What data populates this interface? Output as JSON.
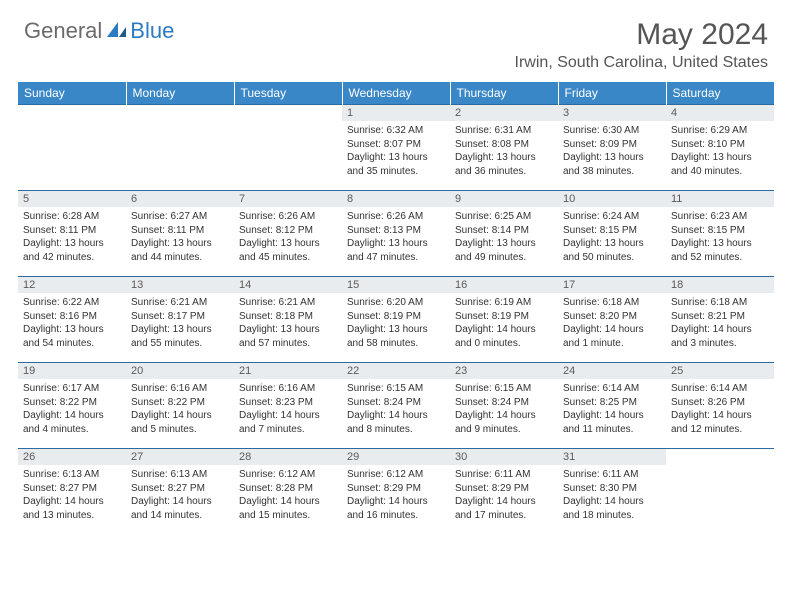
{
  "logo": {
    "part1": "General",
    "part2": "Blue"
  },
  "title": "May 2024",
  "location": "Irwin, South Carolina, United States",
  "colors": {
    "header_bg": "#3a87c8",
    "header_text": "#ffffff",
    "daynum_bg": "#e9ecef",
    "border": "#2d6aa0",
    "title_color": "#555555",
    "logo_gray": "#6b6b6b",
    "logo_blue": "#2d7bc0"
  },
  "fonts": {
    "title_size": 30,
    "location_size": 16,
    "weekday_size": 12,
    "daynum_size": 11,
    "body_size": 10
  },
  "weekdays": [
    "Sunday",
    "Monday",
    "Tuesday",
    "Wednesday",
    "Thursday",
    "Friday",
    "Saturday"
  ],
  "weeks": [
    [
      {
        "empty": true
      },
      {
        "empty": true
      },
      {
        "empty": true
      },
      {
        "day": "1",
        "sunrise": "6:32 AM",
        "sunset": "8:07 PM",
        "daylight": "13 hours and 35 minutes."
      },
      {
        "day": "2",
        "sunrise": "6:31 AM",
        "sunset": "8:08 PM",
        "daylight": "13 hours and 36 minutes."
      },
      {
        "day": "3",
        "sunrise": "6:30 AM",
        "sunset": "8:09 PM",
        "daylight": "13 hours and 38 minutes."
      },
      {
        "day": "4",
        "sunrise": "6:29 AM",
        "sunset": "8:10 PM",
        "daylight": "13 hours and 40 minutes."
      }
    ],
    [
      {
        "day": "5",
        "sunrise": "6:28 AM",
        "sunset": "8:11 PM",
        "daylight": "13 hours and 42 minutes."
      },
      {
        "day": "6",
        "sunrise": "6:27 AM",
        "sunset": "8:11 PM",
        "daylight": "13 hours and 44 minutes."
      },
      {
        "day": "7",
        "sunrise": "6:26 AM",
        "sunset": "8:12 PM",
        "daylight": "13 hours and 45 minutes."
      },
      {
        "day": "8",
        "sunrise": "6:26 AM",
        "sunset": "8:13 PM",
        "daylight": "13 hours and 47 minutes."
      },
      {
        "day": "9",
        "sunrise": "6:25 AM",
        "sunset": "8:14 PM",
        "daylight": "13 hours and 49 minutes."
      },
      {
        "day": "10",
        "sunrise": "6:24 AM",
        "sunset": "8:15 PM",
        "daylight": "13 hours and 50 minutes."
      },
      {
        "day": "11",
        "sunrise": "6:23 AM",
        "sunset": "8:15 PM",
        "daylight": "13 hours and 52 minutes."
      }
    ],
    [
      {
        "day": "12",
        "sunrise": "6:22 AM",
        "sunset": "8:16 PM",
        "daylight": "13 hours and 54 minutes."
      },
      {
        "day": "13",
        "sunrise": "6:21 AM",
        "sunset": "8:17 PM",
        "daylight": "13 hours and 55 minutes."
      },
      {
        "day": "14",
        "sunrise": "6:21 AM",
        "sunset": "8:18 PM",
        "daylight": "13 hours and 57 minutes."
      },
      {
        "day": "15",
        "sunrise": "6:20 AM",
        "sunset": "8:19 PM",
        "daylight": "13 hours and 58 minutes."
      },
      {
        "day": "16",
        "sunrise": "6:19 AM",
        "sunset": "8:19 PM",
        "daylight": "14 hours and 0 minutes."
      },
      {
        "day": "17",
        "sunrise": "6:18 AM",
        "sunset": "8:20 PM",
        "daylight": "14 hours and 1 minute."
      },
      {
        "day": "18",
        "sunrise": "6:18 AM",
        "sunset": "8:21 PM",
        "daylight": "14 hours and 3 minutes."
      }
    ],
    [
      {
        "day": "19",
        "sunrise": "6:17 AM",
        "sunset": "8:22 PM",
        "daylight": "14 hours and 4 minutes."
      },
      {
        "day": "20",
        "sunrise": "6:16 AM",
        "sunset": "8:22 PM",
        "daylight": "14 hours and 5 minutes."
      },
      {
        "day": "21",
        "sunrise": "6:16 AM",
        "sunset": "8:23 PM",
        "daylight": "14 hours and 7 minutes."
      },
      {
        "day": "22",
        "sunrise": "6:15 AM",
        "sunset": "8:24 PM",
        "daylight": "14 hours and 8 minutes."
      },
      {
        "day": "23",
        "sunrise": "6:15 AM",
        "sunset": "8:24 PM",
        "daylight": "14 hours and 9 minutes."
      },
      {
        "day": "24",
        "sunrise": "6:14 AM",
        "sunset": "8:25 PM",
        "daylight": "14 hours and 11 minutes."
      },
      {
        "day": "25",
        "sunrise": "6:14 AM",
        "sunset": "8:26 PM",
        "daylight": "14 hours and 12 minutes."
      }
    ],
    [
      {
        "day": "26",
        "sunrise": "6:13 AM",
        "sunset": "8:27 PM",
        "daylight": "14 hours and 13 minutes."
      },
      {
        "day": "27",
        "sunrise": "6:13 AM",
        "sunset": "8:27 PM",
        "daylight": "14 hours and 14 minutes."
      },
      {
        "day": "28",
        "sunrise": "6:12 AM",
        "sunset": "8:28 PM",
        "daylight": "14 hours and 15 minutes."
      },
      {
        "day": "29",
        "sunrise": "6:12 AM",
        "sunset": "8:29 PM",
        "daylight": "14 hours and 16 minutes."
      },
      {
        "day": "30",
        "sunrise": "6:11 AM",
        "sunset": "8:29 PM",
        "daylight": "14 hours and 17 minutes."
      },
      {
        "day": "31",
        "sunrise": "6:11 AM",
        "sunset": "8:30 PM",
        "daylight": "14 hours and 18 minutes."
      },
      {
        "empty": true
      }
    ]
  ]
}
